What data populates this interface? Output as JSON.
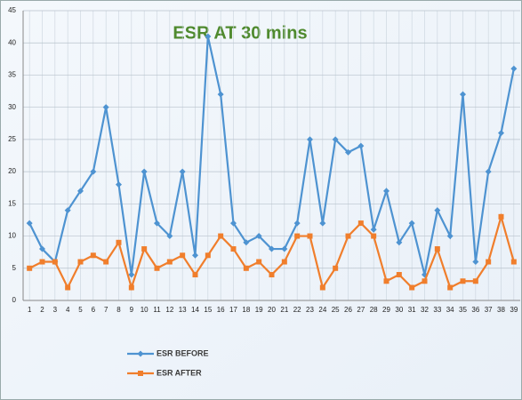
{
  "chart_data": {
    "type": "line",
    "title": "ESR AT 30 mins",
    "categories": [
      1,
      2,
      3,
      4,
      5,
      6,
      7,
      8,
      9,
      10,
      11,
      12,
      13,
      14,
      15,
      16,
      17,
      18,
      19,
      20,
      21,
      22,
      23,
      24,
      25,
      26,
      27,
      28,
      29,
      30,
      31,
      32,
      33,
      34,
      35,
      36,
      37,
      38,
      39
    ],
    "series": [
      {
        "name": "ESR BEFORE",
        "color": "#4e93d1",
        "marker": "diamond",
        "values": [
          12,
          8,
          6,
          14,
          17,
          20,
          30,
          18,
          4,
          20,
          12,
          10,
          20,
          7,
          41,
          32,
          12,
          9,
          10,
          8,
          8,
          12,
          25,
          12,
          25,
          23,
          24,
          11,
          17,
          9,
          12,
          4,
          14,
          10,
          32,
          6,
          20,
          26,
          36
        ]
      },
      {
        "name": "ESR AFTER",
        "color": "#f07e2c",
        "marker": "square",
        "values": [
          5,
          6,
          6,
          2,
          6,
          7,
          6,
          9,
          2,
          8,
          5,
          6,
          7,
          4,
          7,
          10,
          8,
          5,
          6,
          4,
          6,
          10,
          10,
          2,
          5,
          10,
          12,
          10,
          3,
          4,
          2,
          3,
          8,
          2,
          3,
          3,
          6,
          13,
          6
        ]
      }
    ],
    "ylim": [
      0,
      45
    ],
    "yticks": [
      0,
      5,
      10,
      15,
      20,
      25,
      30,
      35,
      40,
      45
    ],
    "grid": true,
    "legend": "bottom-left"
  }
}
